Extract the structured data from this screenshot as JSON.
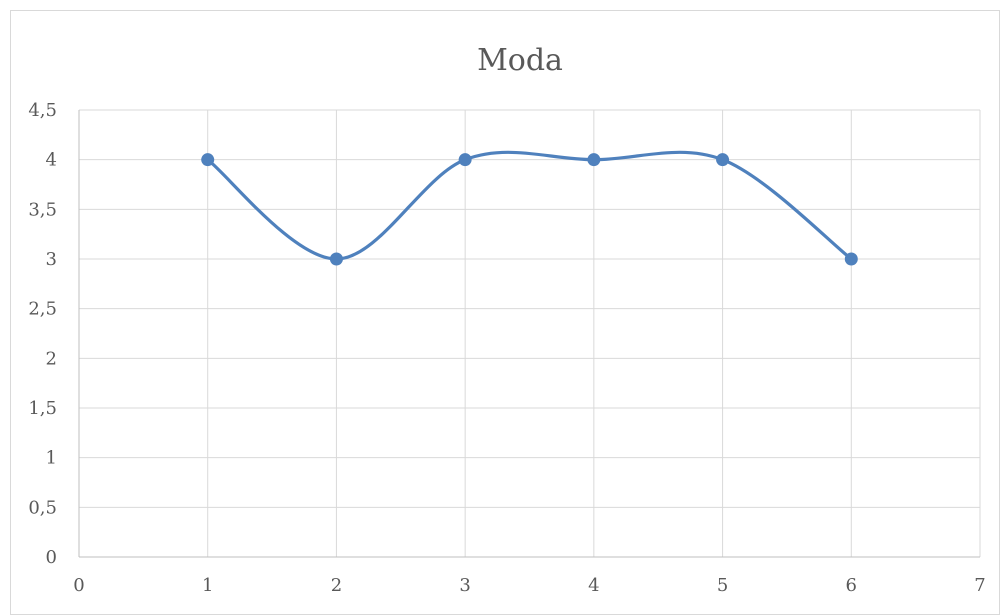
{
  "chart_data": {
    "type": "line",
    "title": "Moda",
    "xlabel": "",
    "ylabel": "",
    "x": [
      1,
      2,
      3,
      4,
      5,
      6
    ],
    "series": [
      {
        "values": [
          4,
          3,
          4,
          4,
          4,
          3
        ],
        "color": "#4f81bd"
      }
    ],
    "xlim": [
      0,
      7
    ],
    "ylim": [
      0,
      4.5
    ],
    "x_ticks": [
      "0",
      "1",
      "2",
      "3",
      "4",
      "5",
      "6",
      "7"
    ],
    "y_ticks": [
      "0",
      "0,5",
      "1",
      "1,5",
      "2",
      "2,5",
      "3",
      "3,5",
      "4",
      "4,5"
    ],
    "grid": true,
    "smooth": true,
    "legend": "none"
  }
}
